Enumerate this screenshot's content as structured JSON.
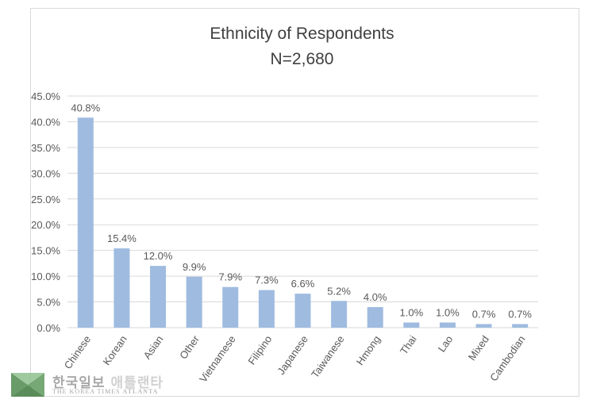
{
  "chart_data": {
    "type": "bar",
    "title": "Ethnicity of Respondents",
    "subtitle": "N=2,680",
    "categories": [
      "Chinese",
      "Korean",
      "Asian",
      "Other",
      "Vietnamese",
      "Filipino",
      "Japanese",
      "Taiwanese",
      "Hmong",
      "Thai",
      "Lao",
      "Mixed",
      "Cambodian"
    ],
    "values": [
      40.8,
      15.4,
      12.0,
      9.9,
      7.9,
      7.3,
      6.6,
      5.2,
      4.0,
      1.0,
      1.0,
      0.7,
      0.7
    ],
    "data_labels": [
      "40.8%",
      "15.4%",
      "12.0%",
      "9.9%",
      "7.9%",
      "7.3%",
      "6.6%",
      "5.2%",
      "4.0%",
      "1.0%",
      "1.0%",
      "0.7%",
      "0.7%"
    ],
    "yticks": [
      0,
      5,
      10,
      15,
      20,
      25,
      30,
      35,
      40,
      45
    ],
    "ytick_labels": [
      "0.0%",
      "5.0%",
      "10.0%",
      "15.0%",
      "20.0%",
      "25.0%",
      "30.0%",
      "35.0%",
      "40.0%",
      "45.0%"
    ],
    "ylim": [
      0,
      45
    ],
    "xlabel": "",
    "ylabel": "",
    "grid": true,
    "legend": "none",
    "bar_color": "#9fbbe0"
  },
  "watermark": {
    "korean_main": "한국일보",
    "korean_sub": "애틀랜타",
    "english_main": "THE KOREA TIMES",
    "english_sub": "ATLANTA"
  }
}
